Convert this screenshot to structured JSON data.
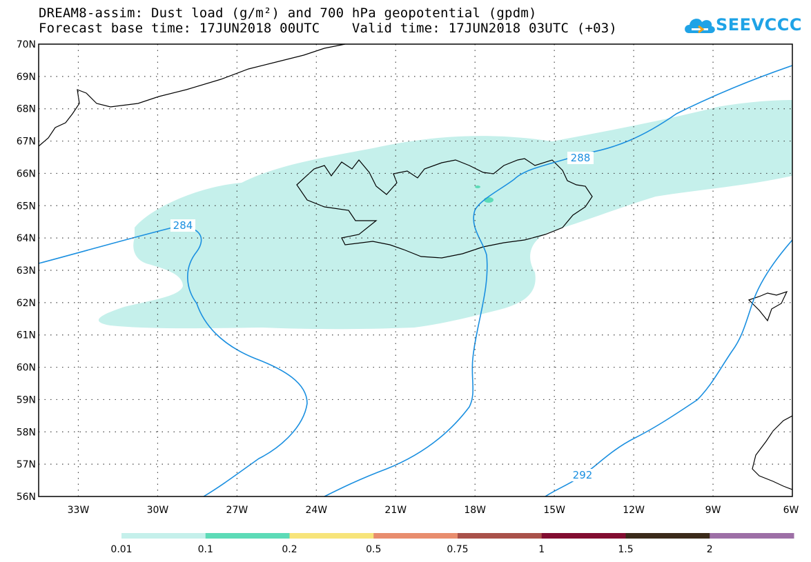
{
  "header": {
    "title_line1": "DREAM8-assim: Dust load (g/m²) and 700 hPa geopotential (gpdm)",
    "title_line2": "Forecast base time: 17JUN2018 00UTC    Valid time: 17JUN2018 03UTC (+03)"
  },
  "logo": {
    "text": "SEEVCCC",
    "icon": "cloud-icon",
    "color": "#1fa3e6"
  },
  "map": {
    "lon_range": [
      -34.5,
      -6
    ],
    "lat_range": [
      56,
      70
    ],
    "lat_labels": [
      "70N",
      "69N",
      "68N",
      "67N",
      "66N",
      "65N",
      "64N",
      "63N",
      "62N",
      "61N",
      "60N",
      "59N",
      "58N",
      "57N",
      "56N"
    ],
    "lon_labels": [
      "33W",
      "30W",
      "27W",
      "24W",
      "21W",
      "18W",
      "15W",
      "12W",
      "9W",
      "6W"
    ],
    "contour_labels": [
      "284",
      "288",
      "292"
    ],
    "contour_color": "#1a8fe0",
    "dust_color": "#c5f0eb"
  },
  "legend": {
    "thresholds": [
      "0.01",
      "0.1",
      "0.2",
      "0.5",
      "0.75",
      "1",
      "1.5",
      "2"
    ],
    "colors": [
      "#c5f0eb",
      "#5ddbb7",
      "#f7e47a",
      "#e88d6e",
      "#a9514a",
      "#820d31",
      "#3b2a1a",
      "#9d6fa6"
    ]
  }
}
